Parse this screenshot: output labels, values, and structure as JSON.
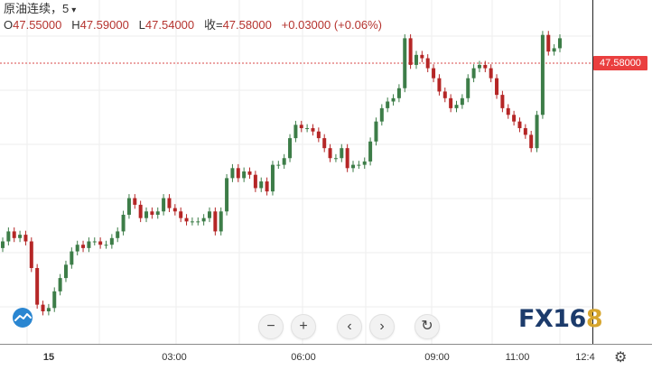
{
  "symbol_title": "原油连续，5",
  "ohlc": {
    "o_label": "O",
    "o_value": "47.55000",
    "h_label": "H",
    "h_value": "47.59000",
    "l_label": "L",
    "l_value": "47.54000",
    "c_label": "收=",
    "c_value": "47.58000",
    "change": "+0.03000 (+0.06%)"
  },
  "last_price_label": "47.58000",
  "x_ticks": [
    {
      "label": "15",
      "bold": true
    },
    {
      "label": "03:00",
      "bold": false
    },
    {
      "label": "06:00",
      "bold": false
    },
    {
      "label": "09:00",
      "bold": false
    },
    {
      "label": "11:00",
      "bold": false
    },
    {
      "label": "12:4",
      "bold": false
    }
  ],
  "controls": {
    "zoom_out": "−",
    "zoom_in": "+",
    "scroll_left": "‹",
    "scroll_right": "›",
    "reset": "↻"
  },
  "brand": {
    "prefix": "FX16",
    "suffix": "8"
  },
  "colors": {
    "up": "#3d7d48",
    "down": "#b52626",
    "price_line": "#d94a4a",
    "price_tag": "#ea3f3f"
  },
  "icons": {
    "cloud_logo": "cloud-icon",
    "settings": "gear-icon",
    "dropdown": "chevron-down-icon"
  },
  "chart_data": {
    "type": "candlestick",
    "title": "原油连续，5",
    "last_price": 47.58,
    "x_ticks": [
      "15",
      "03:00",
      "06:00",
      "09:00",
      "11:00",
      "12:4"
    ],
    "closes": [
      46.97,
      47.0,
      46.98,
      46.99,
      46.97,
      46.89,
      46.78,
      46.76,
      46.77,
      46.82,
      46.86,
      46.9,
      46.94,
      46.96,
      46.95,
      46.97,
      46.97,
      46.96,
      46.96,
      46.98,
      47.0,
      47.05,
      47.1,
      47.08,
      47.04,
      47.06,
      47.05,
      47.06,
      47.1,
      47.07,
      47.06,
      47.04,
      47.03,
      47.03,
      47.03,
      47.04,
      47.06,
      47.0,
      47.06,
      47.16,
      47.19,
      47.16,
      47.18,
      47.17,
      47.13,
      47.15,
      47.12,
      47.2,
      47.2,
      47.22,
      47.28,
      47.32,
      47.31,
      47.31,
      47.3,
      47.28,
      47.25,
      47.22,
      47.22,
      47.25,
      47.19,
      47.2,
      47.2,
      47.21,
      47.27,
      47.33,
      47.37,
      47.39,
      47.4,
      47.43,
      47.58,
      47.5,
      47.53,
      47.52,
      47.49,
      47.46,
      47.42,
      47.4,
      47.37,
      47.38,
      47.4,
      47.46,
      47.49,
      47.5,
      47.49,
      47.46,
      47.41,
      47.37,
      47.35,
      47.33,
      47.31,
      47.29,
      47.25,
      47.35,
      47.59,
      47.54,
      47.55,
      47.58
    ]
  }
}
